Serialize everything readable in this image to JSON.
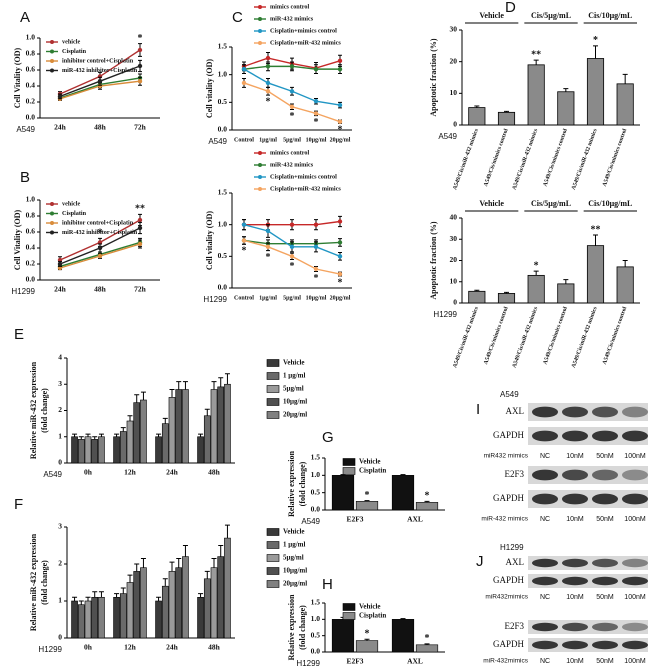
{
  "chart_data": [
    {
      "type": "line",
      "panel": "A",
      "cell_line": "A549",
      "ylabel": [
        "Cell Vitality (OD)"
      ],
      "legend": "upper left",
      "categories": [
        "24h",
        "48h",
        "72h"
      ],
      "ylim": [
        0,
        1
      ],
      "yticks": [
        {
          "value": 0,
          "label": "0.0"
        },
        0.2,
        0.4,
        0.6,
        0.8,
        {
          "value": 1,
          "label": "1.0"
        }
      ],
      "series": [
        {
          "name": "vehicle",
          "color": "#b03030",
          "values": [
            0.3,
            0.52,
            0.85
          ],
          "errors": [
            0.03,
            0.05,
            0.08
          ]
        },
        {
          "name": "Cisplatin",
          "color": "#2e7d32",
          "values": [
            0.25,
            0.42,
            0.5
          ],
          "errors": [
            0.02,
            0.04,
            0.05
          ]
        },
        {
          "name": "inhibitor control+Cisplatin",
          "color": "#d98c3a",
          "values": [
            0.24,
            0.4,
            0.46
          ],
          "errors": [
            0.02,
            0.04,
            0.05
          ]
        },
        {
          "name": "miR-432 inhibitor+Cisplatin",
          "color": "#222222",
          "values": [
            0.27,
            0.46,
            0.65
          ],
          "errors": [
            0.03,
            0.05,
            0.07
          ]
        }
      ],
      "annotations": [
        {
          "text": "*",
          "index": 2
        }
      ]
    },
    {
      "type": "line",
      "panel": "B",
      "cell_line": "H1299",
      "ylabel": [
        "Cell Vitality (OD)"
      ],
      "legend": "upper left",
      "categories": [
        "24h",
        "48h",
        "72h"
      ],
      "ylim": [
        0,
        1
      ],
      "yticks": [
        {
          "value": 0,
          "label": "0.0"
        },
        0.2,
        0.4,
        0.6,
        0.8,
        {
          "value": 1,
          "label": "1.0"
        }
      ],
      "series": [
        {
          "name": "vehicle",
          "color": "#b03030",
          "values": [
            0.25,
            0.47,
            0.75
          ],
          "errors": [
            0.04,
            0.05,
            0.07
          ]
        },
        {
          "name": "Cisplatin",
          "color": "#2e7d32",
          "values": [
            0.17,
            0.32,
            0.47
          ],
          "errors": [
            0.02,
            0.03,
            0.05
          ]
        },
        {
          "name": "inhibitor control+Cisplatin",
          "color": "#d98c3a",
          "values": [
            0.15,
            0.3,
            0.45
          ],
          "errors": [
            0.02,
            0.03,
            0.05
          ]
        },
        {
          "name": "miR-432 inhibitor+Cisplatin",
          "color": "#222222",
          "values": [
            0.2,
            0.4,
            0.65
          ],
          "errors": [
            0.03,
            0.05,
            0.07
          ]
        }
      ],
      "annotations": [
        {
          "text": "*",
          "index": 1
        },
        {
          "text": "**",
          "index": 2
        }
      ]
    },
    {
      "type": "line",
      "panel": "C",
      "cell_line": "A549",
      "ylabel": [
        "Cell vitality (OD)"
      ],
      "legend": "top",
      "categories": [
        "Control",
        "1μg/ml",
        "5μg/ml",
        "10μg/ml",
        "20μg/ml"
      ],
      "ylim": [
        0,
        1.5
      ],
      "yticks": [
        {
          "value": 0,
          "label": "0.0"
        },
        0.5,
        {
          "value": 1,
          "label": "1.0"
        },
        1.5
      ],
      "series": [
        {
          "name": "mimics control",
          "color": "#c62828",
          "values": [
            1.15,
            1.3,
            1.2,
            1.12,
            1.25
          ],
          "errors": [
            0.08,
            0.1,
            0.1,
            0.1,
            0.1
          ]
        },
        {
          "name": "miR-432 mimics",
          "color": "#2e7d32",
          "values": [
            1.1,
            1.15,
            1.15,
            1.1,
            1.1
          ],
          "errors": [
            0.08,
            0.08,
            0.08,
            0.08,
            0.08
          ]
        },
        {
          "name": "Cisplatin+mimics control",
          "color": "#2196c4",
          "values": [
            1.1,
            0.85,
            0.7,
            0.52,
            0.45
          ],
          "errors": [
            0.08,
            0.08,
            0.07,
            0.05,
            0.05
          ]
        },
        {
          "name": "Cisplatin+miR-432 mimics",
          "color": "#f4a460",
          "values": [
            0.85,
            0.7,
            0.42,
            0.3,
            0.15
          ],
          "errors": [
            0.08,
            0.07,
            0.05,
            0.04,
            0.03
          ]
        }
      ],
      "annotations": [
        {
          "text": "*",
          "index": 1,
          "series": "Cisplatin+miR-432 mimics"
        },
        {
          "text": "*",
          "index": 2,
          "series": "Cisplatin+miR-432 mimics"
        },
        {
          "text": "*",
          "index": 3,
          "series": "Cisplatin+miR-432 mimics"
        },
        {
          "text": "*",
          "index": 4,
          "series": "Cisplatin+miR-432 mimics"
        }
      ]
    },
    {
      "type": "line",
      "cell_line": "H1299",
      "ylabel": [
        "Cell vitality (OD)"
      ],
      "legend": "top",
      "categories": [
        "Control",
        "1μg/ml",
        "5μg/ml",
        "10μg/ml",
        "20μg/ml"
      ],
      "ylim": [
        0,
        1.5
      ],
      "yticks": [
        {
          "value": 0,
          "label": "0.0"
        },
        0.5,
        {
          "value": 1,
          "label": "1.0"
        },
        1.5
      ],
      "series": [
        {
          "name": "mimics control",
          "color": "#c62828",
          "values": [
            1.0,
            1.0,
            1.0,
            1.0,
            1.05
          ],
          "errors": [
            0.08,
            0.08,
            0.08,
            0.08,
            0.08
          ]
        },
        {
          "name": "miR-432 mimics",
          "color": "#2e7d32",
          "values": [
            0.75,
            0.7,
            0.7,
            0.7,
            0.72
          ],
          "errors": [
            0.06,
            0.06,
            0.06,
            0.06,
            0.06
          ]
        },
        {
          "name": "Cisplatin+mimics control",
          "color": "#2196c4",
          "values": [
            1.0,
            0.9,
            0.65,
            0.65,
            0.5
          ],
          "errors": [
            0.08,
            0.1,
            0.08,
            0.08,
            0.06
          ]
        },
        {
          "name": "Cisplatin+miR-432 mimics",
          "color": "#f4a460",
          "values": [
            0.75,
            0.65,
            0.5,
            0.3,
            0.22
          ],
          "errors": [
            0.06,
            0.06,
            0.05,
            0.04,
            0.03
          ]
        }
      ],
      "annotations": [
        {
          "text": "*",
          "index": 0,
          "series": "Cisplatin+miR-432 mimics"
        },
        {
          "text": "*",
          "index": 1,
          "series": "Cisplatin+miR-432 mimics"
        },
        {
          "text": "*",
          "index": 2,
          "series": "Cisplatin+miR-432 mimics"
        },
        {
          "text": "*",
          "index": 3,
          "series": "Cisplatin+miR-432 mimics"
        },
        {
          "text": "*",
          "index": 4,
          "series": "Cisplatin+miR-432 mimics"
        }
      ]
    },
    {
      "type": "bar",
      "panel": "D",
      "cell_line": "A549",
      "ylabel": [
        "Apoptotic fraction (%)"
      ],
      "color": "#8a8a8a",
      "groups": [
        "Vehicle",
        "Cis/5μg/mL",
        "Cis/10μg/mL"
      ],
      "categories": [
        "A549/Cis/miR-432 mimics",
        "A549/Cis/mimics control",
        "A549/Cis/miR-432 mimics",
        "A549/Cis/mimics control",
        "A549/Cis/miR-432 mimics",
        "A549/Cis/mimics control"
      ],
      "values": [
        5.5,
        4,
        19,
        10.5,
        21,
        13
      ],
      "errors": [
        0.5,
        0.3,
        1.5,
        1,
        4,
        3
      ],
      "ylim": [
        0,
        30
      ],
      "yticks": [
        0,
        10,
        20,
        30
      ],
      "annotations": [
        {
          "text": "**",
          "index": 2
        },
        {
          "text": "*",
          "index": 4
        }
      ]
    },
    {
      "type": "bar",
      "cell_line": "H1299",
      "ylabel": [
        "Apoptotic fraction (%)"
      ],
      "color": "#8a8a8a",
      "groups": [
        "Vehicle",
        "Cis/5μg/mL",
        "Cis/10μg/mL"
      ],
      "categories": [
        "A549/Cis/miR-432 mimics",
        "A549/Cis/mimics control",
        "A549/Cis/miR-432 mimics",
        "A549/Cis/mimics control",
        "A549/Cis/miR-432 mimics",
        "A549/Cis/mimics control"
      ],
      "values": [
        5.5,
        4.5,
        13,
        9,
        27,
        17
      ],
      "errors": [
        0.5,
        0.5,
        2,
        2,
        5,
        3
      ],
      "ylim": [
        0,
        40
      ],
      "yticks": [
        0,
        10,
        20,
        30,
        40
      ],
      "annotations": [
        {
          "text": "*",
          "index": 2
        },
        {
          "text": "**",
          "index": 4
        }
      ]
    },
    {
      "type": "grouped_bar",
      "panel": "E",
      "cell_line": "A549",
      "ylabel": [
        "Relative miR-432 expression",
        "(fold change)"
      ],
      "legend": "right",
      "categories": [
        "0h",
        "12h",
        "24h",
        "48h"
      ],
      "ylim": [
        0,
        4
      ],
      "yticks": [
        0,
        1,
        2,
        3,
        4
      ],
      "series": [
        {
          "name": "Vehicle",
          "color": "#3a3a3a",
          "values": [
            1.0,
            1.0,
            1.0,
            1.0
          ],
          "errors": [
            0.1,
            0.1,
            0.1,
            0.1
          ]
        },
        {
          "name": "1 μg/ml",
          "color": "#6a6a6a",
          "values": [
            0.9,
            1.2,
            1.5,
            1.8
          ],
          "errors": [
            0.1,
            0.15,
            0.2,
            0.25
          ]
        },
        {
          "name": "5μg/ml",
          "color": "#9a9a9a",
          "values": [
            1.0,
            1.6,
            2.5,
            2.8
          ],
          "errors": [
            0.1,
            0.2,
            0.3,
            0.3
          ]
        },
        {
          "name": "10μg/ml",
          "color": "#505050",
          "values": [
            0.9,
            2.3,
            2.8,
            2.9
          ],
          "errors": [
            0.1,
            0.3,
            0.3,
            0.35
          ]
        },
        {
          "name": "20μg/ml",
          "color": "#808080",
          "values": [
            1.0,
            2.4,
            2.8,
            3.0
          ],
          "errors": [
            0.1,
            0.3,
            0.3,
            0.4
          ]
        }
      ]
    },
    {
      "type": "grouped_bar",
      "panel": "F",
      "cell_line": "H1299",
      "ylabel": [
        "Relative miR-432 expression",
        "(fold change)"
      ],
      "legend": "right",
      "categories": [
        "0h",
        "12h",
        "24h",
        "48h"
      ],
      "ylim": [
        0,
        3
      ],
      "yticks": [
        0,
        1,
        2,
        3
      ],
      "series": [
        {
          "name": "Vehicle",
          "color": "#3a3a3a",
          "values": [
            1.0,
            1.1,
            1.0,
            1.1
          ],
          "errors": [
            0.1,
            0.1,
            0.1,
            0.1
          ]
        },
        {
          "name": "1 μg/ml",
          "color": "#6a6a6a",
          "values": [
            0.9,
            1.2,
            1.4,
            1.6
          ],
          "errors": [
            0.1,
            0.15,
            0.2,
            0.2
          ]
        },
        {
          "name": "5μg/ml",
          "color": "#9a9a9a",
          "values": [
            1.0,
            1.5,
            1.8,
            1.9
          ],
          "errors": [
            0.1,
            0.2,
            0.25,
            0.25
          ]
        },
        {
          "name": "10μg/ml",
          "color": "#505050",
          "values": [
            1.1,
            1.8,
            1.9,
            2.2
          ],
          "errors": [
            0.15,
            0.2,
            0.25,
            0.3
          ]
        },
        {
          "name": "20μg/ml",
          "color": "#808080",
          "values": [
            1.1,
            1.9,
            2.2,
            2.7
          ],
          "errors": [
            0.15,
            0.25,
            0.3,
            0.35
          ]
        }
      ]
    },
    {
      "type": "grouped_bar",
      "panel": "G",
      "cell_line": "A549",
      "ylabel": [
        "Relative expression",
        "(fold change)"
      ],
      "legend": "upper right",
      "categories": [
        "E2F3",
        "AXL"
      ],
      "ylim": [
        0,
        1.5
      ],
      "yticks": [
        {
          "value": 0,
          "label": "0.0"
        },
        0.5,
        {
          "value": 1,
          "label": "1.0"
        },
        1.5
      ],
      "series": [
        {
          "name": "Vehicle",
          "color": "#111111",
          "values": [
            1.0,
            1.0
          ],
          "errors": [
            0.02,
            0.02
          ]
        },
        {
          "name": "Cisplatin",
          "color": "#8a8a8a",
          "values": [
            0.25,
            0.22
          ],
          "errors": [
            0.02,
            0.03
          ]
        }
      ],
      "annotations": [
        {
          "text": "*",
          "index": 0,
          "series": "Cisplatin"
        },
        {
          "text": "*",
          "index": 1,
          "series": "Cisplatin"
        }
      ]
    },
    {
      "type": "grouped_bar",
      "panel": "H",
      "cell_line": "H1299",
      "ylabel": [
        "Relative expression",
        "(fold change)"
      ],
      "legend": "upper right",
      "categories": [
        "E2F3",
        "AXL"
      ],
      "ylim": [
        0,
        1.5
      ],
      "yticks": [
        {
          "value": 0,
          "label": "0.0"
        },
        0.5,
        {
          "value": 1,
          "label": "1.0"
        },
        1.5
      ],
      "series": [
        {
          "name": "Vehicle",
          "color": "#111111",
          "values": [
            1.0,
            1.0
          ],
          "errors": [
            0.06,
            0.02
          ]
        },
        {
          "name": "Cisplatin",
          "color": "#8a8a8a",
          "values": [
            0.35,
            0.22
          ],
          "errors": [
            0.04,
            0.03
          ]
        }
      ],
      "annotations": [
        {
          "text": "*",
          "index": 0,
          "series": "Cisplatin"
        },
        {
          "text": "*",
          "index": 1,
          "series": "Cisplatin"
        }
      ]
    }
  ],
  "blots": [
    {
      "panel": "I",
      "cell_line": "A549",
      "sets": [
        {
          "bands": [
            "AXL",
            "GAPDH"
          ],
          "treatment": "miR432 mimics",
          "lanes": [
            "NC",
            "10nM",
            "50nM",
            "100nM"
          ]
        },
        {
          "bands": [
            "E2F3",
            "GAPDH"
          ],
          "treatment": "miR-432 mimics",
          "lanes": [
            "NC",
            "10nM",
            "50nM",
            "100nM"
          ]
        }
      ]
    },
    {
      "panel": "J",
      "cell_line": "H1299",
      "sets": [
        {
          "bands": [
            "AXL",
            "GAPDH"
          ],
          "treatment": "miR432mimics",
          "lanes": [
            "NC",
            "10nM",
            "50nM",
            "100nM"
          ]
        },
        {
          "bands": [
            "E2F3",
            "GAPDH"
          ],
          "treatment": "miR-432mimics",
          "lanes": [
            "NC",
            "10nM",
            "50nM",
            "100nM"
          ]
        }
      ]
    }
  ]
}
